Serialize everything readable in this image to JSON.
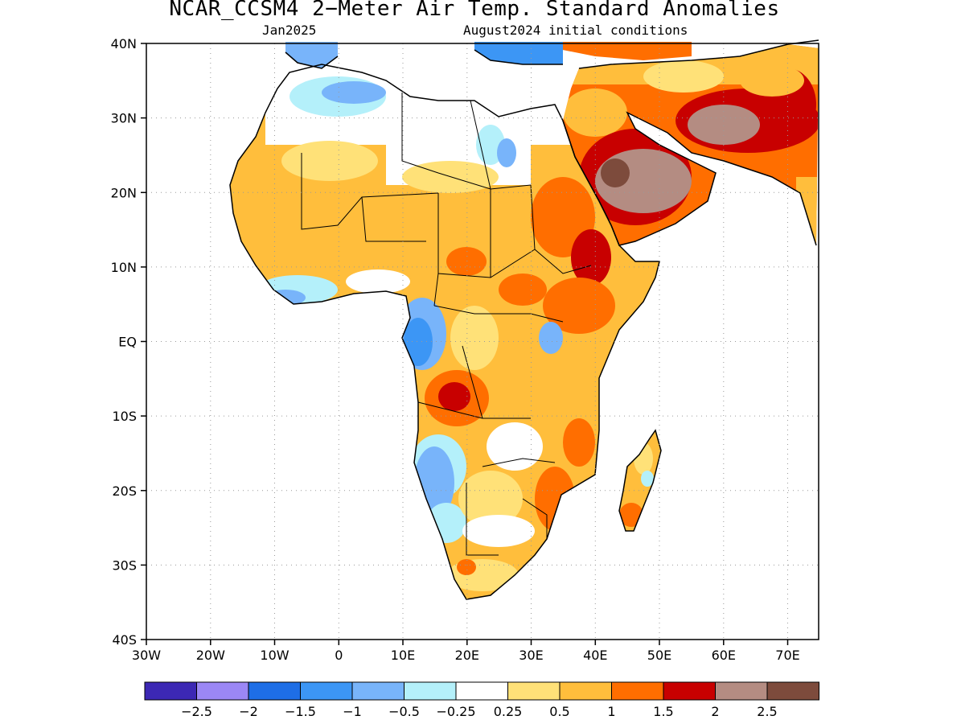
{
  "title": "NCAR_CCSM4 2−Meter Air Temp. Standard Anomalies",
  "valid_month": "Jan2025",
  "init_conditions": "August2024 initial conditions",
  "map": {
    "lon_range": [
      -30,
      75
    ],
    "lat_range": [
      -40,
      40
    ],
    "lon_ticks": [
      "30W",
      "20W",
      "10W",
      "0",
      "10E",
      "20E",
      "30E",
      "40E",
      "50E",
      "60E",
      "70E"
    ],
    "lat_ticks": [
      "40N",
      "30N",
      "20N",
      "10N",
      "EQ",
      "10S",
      "20S",
      "30S",
      "40S"
    ],
    "grid": "dotted"
  },
  "colorbar": {
    "colors": [
      "#3c28b4",
      "#9b87f5",
      "#1e6ee6",
      "#3c96f5",
      "#78b4fa",
      "#b4f0fa",
      "#ffffff",
      "#ffe178",
      "#ffbe3c",
      "#ff6e00",
      "#c80000",
      "#b48c82",
      "#7d4b3c"
    ],
    "labels": [
      "−2.5",
      "−2",
      "−1.5",
      "−1",
      "−0.5",
      "−0.25",
      "0.25",
      "0.5",
      "1",
      "1.5",
      "2",
      "2.5"
    ]
  },
  "anomaly_colors": {
    "le_-2.5": "#3c28b4",
    "-2": "#9b87f5",
    "-1.5": "#1e6ee6",
    "-1": "#3c96f5",
    "-0.5": "#78b4fa",
    "-0.25": "#b4f0fa",
    "neutral": "#ffffff",
    "0.25": "#ffe178",
    "0.5": "#ffbe3c",
    "1": "#ff6e00",
    "1.5": "#c80000",
    "2": "#b48c82",
    "ge_2.5": "#7d4b3c"
  }
}
